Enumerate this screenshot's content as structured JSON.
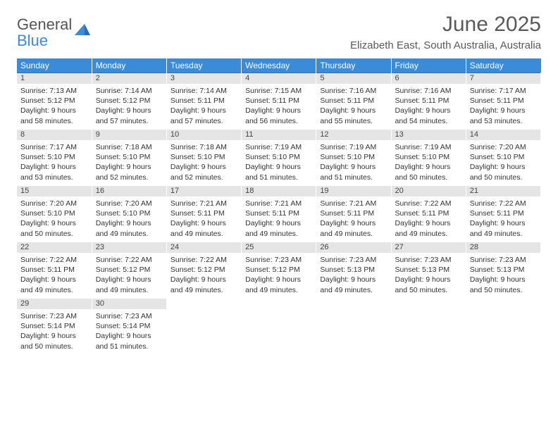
{
  "brand": {
    "name1": "General",
    "name2": "Blue"
  },
  "title": "June 2025",
  "location": "Elizabeth East, South Australia, Australia",
  "colors": {
    "header_bg": "#3a8bd8",
    "header_text": "#ffffff",
    "daynum_bg": "#e5e5e5",
    "border": "#3a6ea5",
    "text": "#333333",
    "title_text": "#5a5a5a"
  },
  "weekdays": [
    "Sunday",
    "Monday",
    "Tuesday",
    "Wednesday",
    "Thursday",
    "Friday",
    "Saturday"
  ],
  "weeks": [
    [
      {
        "day": "1",
        "sunrise": "Sunrise: 7:13 AM",
        "sunset": "Sunset: 5:12 PM",
        "daylight": "Daylight: 9 hours and 58 minutes."
      },
      {
        "day": "2",
        "sunrise": "Sunrise: 7:14 AM",
        "sunset": "Sunset: 5:12 PM",
        "daylight": "Daylight: 9 hours and 57 minutes."
      },
      {
        "day": "3",
        "sunrise": "Sunrise: 7:14 AM",
        "sunset": "Sunset: 5:11 PM",
        "daylight": "Daylight: 9 hours and 57 minutes."
      },
      {
        "day": "4",
        "sunrise": "Sunrise: 7:15 AM",
        "sunset": "Sunset: 5:11 PM",
        "daylight": "Daylight: 9 hours and 56 minutes."
      },
      {
        "day": "5",
        "sunrise": "Sunrise: 7:16 AM",
        "sunset": "Sunset: 5:11 PM",
        "daylight": "Daylight: 9 hours and 55 minutes."
      },
      {
        "day": "6",
        "sunrise": "Sunrise: 7:16 AM",
        "sunset": "Sunset: 5:11 PM",
        "daylight": "Daylight: 9 hours and 54 minutes."
      },
      {
        "day": "7",
        "sunrise": "Sunrise: 7:17 AM",
        "sunset": "Sunset: 5:11 PM",
        "daylight": "Daylight: 9 hours and 53 minutes."
      }
    ],
    [
      {
        "day": "8",
        "sunrise": "Sunrise: 7:17 AM",
        "sunset": "Sunset: 5:10 PM",
        "daylight": "Daylight: 9 hours and 53 minutes."
      },
      {
        "day": "9",
        "sunrise": "Sunrise: 7:18 AM",
        "sunset": "Sunset: 5:10 PM",
        "daylight": "Daylight: 9 hours and 52 minutes."
      },
      {
        "day": "10",
        "sunrise": "Sunrise: 7:18 AM",
        "sunset": "Sunset: 5:10 PM",
        "daylight": "Daylight: 9 hours and 52 minutes."
      },
      {
        "day": "11",
        "sunrise": "Sunrise: 7:19 AM",
        "sunset": "Sunset: 5:10 PM",
        "daylight": "Daylight: 9 hours and 51 minutes."
      },
      {
        "day": "12",
        "sunrise": "Sunrise: 7:19 AM",
        "sunset": "Sunset: 5:10 PM",
        "daylight": "Daylight: 9 hours and 51 minutes."
      },
      {
        "day": "13",
        "sunrise": "Sunrise: 7:19 AM",
        "sunset": "Sunset: 5:10 PM",
        "daylight": "Daylight: 9 hours and 50 minutes."
      },
      {
        "day": "14",
        "sunrise": "Sunrise: 7:20 AM",
        "sunset": "Sunset: 5:10 PM",
        "daylight": "Daylight: 9 hours and 50 minutes."
      }
    ],
    [
      {
        "day": "15",
        "sunrise": "Sunrise: 7:20 AM",
        "sunset": "Sunset: 5:10 PM",
        "daylight": "Daylight: 9 hours and 50 minutes."
      },
      {
        "day": "16",
        "sunrise": "Sunrise: 7:20 AM",
        "sunset": "Sunset: 5:10 PM",
        "daylight": "Daylight: 9 hours and 49 minutes."
      },
      {
        "day": "17",
        "sunrise": "Sunrise: 7:21 AM",
        "sunset": "Sunset: 5:11 PM",
        "daylight": "Daylight: 9 hours and 49 minutes."
      },
      {
        "day": "18",
        "sunrise": "Sunrise: 7:21 AM",
        "sunset": "Sunset: 5:11 PM",
        "daylight": "Daylight: 9 hours and 49 minutes."
      },
      {
        "day": "19",
        "sunrise": "Sunrise: 7:21 AM",
        "sunset": "Sunset: 5:11 PM",
        "daylight": "Daylight: 9 hours and 49 minutes."
      },
      {
        "day": "20",
        "sunrise": "Sunrise: 7:22 AM",
        "sunset": "Sunset: 5:11 PM",
        "daylight": "Daylight: 9 hours and 49 minutes."
      },
      {
        "day": "21",
        "sunrise": "Sunrise: 7:22 AM",
        "sunset": "Sunset: 5:11 PM",
        "daylight": "Daylight: 9 hours and 49 minutes."
      }
    ],
    [
      {
        "day": "22",
        "sunrise": "Sunrise: 7:22 AM",
        "sunset": "Sunset: 5:11 PM",
        "daylight": "Daylight: 9 hours and 49 minutes."
      },
      {
        "day": "23",
        "sunrise": "Sunrise: 7:22 AM",
        "sunset": "Sunset: 5:12 PM",
        "daylight": "Daylight: 9 hours and 49 minutes."
      },
      {
        "day": "24",
        "sunrise": "Sunrise: 7:22 AM",
        "sunset": "Sunset: 5:12 PM",
        "daylight": "Daylight: 9 hours and 49 minutes."
      },
      {
        "day": "25",
        "sunrise": "Sunrise: 7:23 AM",
        "sunset": "Sunset: 5:12 PM",
        "daylight": "Daylight: 9 hours and 49 minutes."
      },
      {
        "day": "26",
        "sunrise": "Sunrise: 7:23 AM",
        "sunset": "Sunset: 5:13 PM",
        "daylight": "Daylight: 9 hours and 49 minutes."
      },
      {
        "day": "27",
        "sunrise": "Sunrise: 7:23 AM",
        "sunset": "Sunset: 5:13 PM",
        "daylight": "Daylight: 9 hours and 50 minutes."
      },
      {
        "day": "28",
        "sunrise": "Sunrise: 7:23 AM",
        "sunset": "Sunset: 5:13 PM",
        "daylight": "Daylight: 9 hours and 50 minutes."
      }
    ],
    [
      {
        "day": "29",
        "sunrise": "Sunrise: 7:23 AM",
        "sunset": "Sunset: 5:14 PM",
        "daylight": "Daylight: 9 hours and 50 minutes."
      },
      {
        "day": "30",
        "sunrise": "Sunrise: 7:23 AM",
        "sunset": "Sunset: 5:14 PM",
        "daylight": "Daylight: 9 hours and 51 minutes."
      },
      null,
      null,
      null,
      null,
      null
    ]
  ]
}
